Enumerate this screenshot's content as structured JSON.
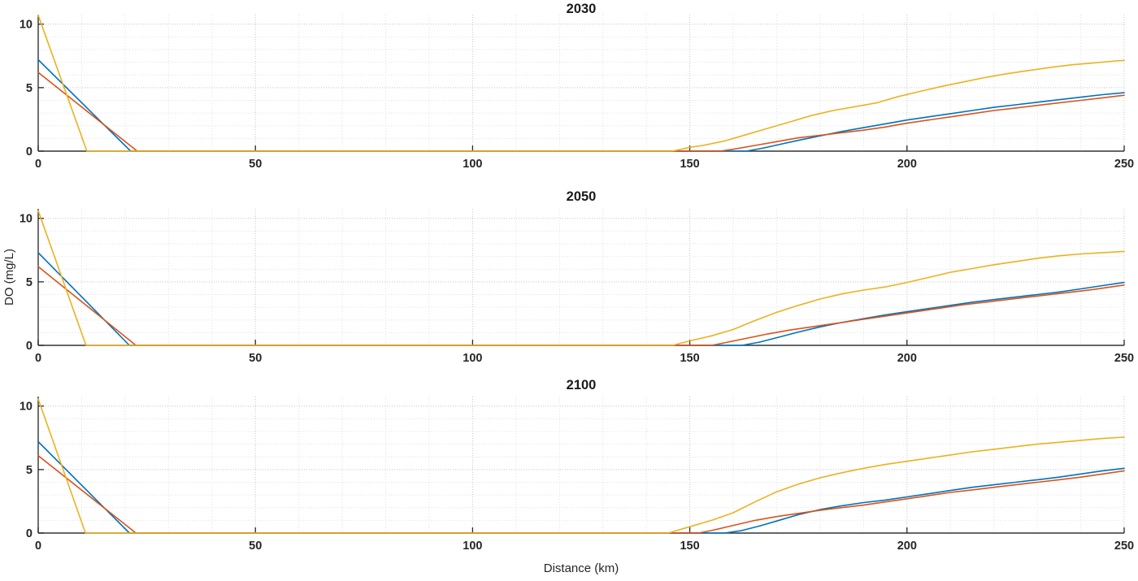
{
  "figure": {
    "xlabel": "Distance (km)",
    "ylabel": "DO (mg/L)",
    "axis_color": "#333333",
    "tick_color": "#262626",
    "grid_major_color": "#c4c4c4",
    "grid_minor_color": "#dedede",
    "x_ticks": [
      0,
      50,
      100,
      150,
      200,
      250
    ],
    "y_ticks": [
      0,
      5,
      10
    ]
  },
  "chart_data": [
    {
      "type": "line",
      "title": "2030",
      "xlabel": "Distance (km)",
      "ylabel": "DO (mg/L)",
      "xlim": [
        0,
        250
      ],
      "ylim": [
        0,
        10.75
      ],
      "x_ticks": [
        0,
        50,
        100,
        150,
        200,
        250
      ],
      "y_ticks": [
        0,
        5,
        10
      ],
      "grid": true,
      "minor_grid": true,
      "legend": null,
      "series": [
        {
          "name": "blue-line",
          "color": "#0072BD",
          "points": [
            [
              0,
              7.2
            ],
            [
              21.3,
              0
            ],
            [
              163,
              0
            ],
            [
              167,
              0.25
            ],
            [
              171,
              0.55
            ],
            [
              175,
              0.85
            ],
            [
              180,
              1.2
            ],
            [
              185,
              1.55
            ],
            [
              190,
              1.85
            ],
            [
              195,
              2.15
            ],
            [
              200,
              2.45
            ],
            [
              205,
              2.7
            ],
            [
              210,
              2.95
            ],
            [
              215,
              3.2
            ],
            [
              220,
              3.45
            ],
            [
              225,
              3.65
            ],
            [
              230,
              3.85
            ],
            [
              235,
              4.05
            ],
            [
              240,
              4.25
            ],
            [
              245,
              4.45
            ],
            [
              250,
              4.6
            ]
          ]
        },
        {
          "name": "red-line",
          "color": "#D95319",
          "points": [
            [
              0,
              6.2
            ],
            [
              22.8,
              0
            ],
            [
              157,
              0
            ],
            [
              160,
              0.15
            ],
            [
              165,
              0.45
            ],
            [
              170,
              0.75
            ],
            [
              175,
              1.05
            ],
            [
              180,
              1.25
            ],
            [
              185,
              1.45
            ],
            [
              190,
              1.65
            ],
            [
              195,
              1.9
            ],
            [
              200,
              2.2
            ],
            [
              205,
              2.45
            ],
            [
              210,
              2.7
            ],
            [
              215,
              2.95
            ],
            [
              220,
              3.2
            ],
            [
              225,
              3.4
            ],
            [
              230,
              3.6
            ],
            [
              235,
              3.8
            ],
            [
              240,
              4.0
            ],
            [
              245,
              4.2
            ],
            [
              250,
              4.4
            ]
          ]
        },
        {
          "name": "yellow-line",
          "color": "#EDB120",
          "points": [
            [
              0,
              10.7
            ],
            [
              11.2,
              0
            ],
            [
              146,
              0
            ],
            [
              150,
              0.3
            ],
            [
              153,
              0.45
            ],
            [
              158,
              0.8
            ],
            [
              163,
              1.3
            ],
            [
              168,
              1.8
            ],
            [
              173,
              2.3
            ],
            [
              178,
              2.8
            ],
            [
              183,
              3.2
            ],
            [
              188,
              3.5
            ],
            [
              193,
              3.8
            ],
            [
              198,
              4.3
            ],
            [
              203,
              4.7
            ],
            [
              208,
              5.1
            ],
            [
              213,
              5.45
            ],
            [
              218,
              5.8
            ],
            [
              223,
              6.1
            ],
            [
              228,
              6.35
            ],
            [
              233,
              6.6
            ],
            [
              238,
              6.8
            ],
            [
              243,
              6.95
            ],
            [
              248,
              7.1
            ],
            [
              250,
              7.15
            ]
          ]
        }
      ]
    },
    {
      "type": "line",
      "title": "2050",
      "xlabel": "Distance (km)",
      "ylabel": "DO (mg/L)",
      "xlim": [
        0,
        250
      ],
      "ylim": [
        0,
        10.75
      ],
      "x_ticks": [
        0,
        50,
        100,
        150,
        200,
        250
      ],
      "y_ticks": [
        0,
        5,
        10
      ],
      "grid": true,
      "minor_grid": true,
      "legend": null,
      "series": [
        {
          "name": "blue-line",
          "color": "#0072BD",
          "points": [
            [
              0,
              7.3
            ],
            [
              21,
              0
            ],
            [
              162,
              0
            ],
            [
              166,
              0.25
            ],
            [
              170,
              0.6
            ],
            [
              175,
              1.05
            ],
            [
              180,
              1.45
            ],
            [
              185,
              1.8
            ],
            [
              190,
              2.1
            ],
            [
              195,
              2.4
            ],
            [
              200,
              2.65
            ],
            [
              205,
              2.9
            ],
            [
              210,
              3.15
            ],
            [
              215,
              3.4
            ],
            [
              220,
              3.6
            ],
            [
              225,
              3.8
            ],
            [
              230,
              4.0
            ],
            [
              235,
              4.2
            ],
            [
              240,
              4.45
            ],
            [
              245,
              4.7
            ],
            [
              250,
              4.95
            ]
          ]
        },
        {
          "name": "red-line",
          "color": "#D95319",
          "points": [
            [
              0,
              6.2
            ],
            [
              22.5,
              0
            ],
            [
              155,
              0
            ],
            [
              158,
              0.2
            ],
            [
              163,
              0.55
            ],
            [
              168,
              0.9
            ],
            [
              173,
              1.2
            ],
            [
              178,
              1.45
            ],
            [
              183,
              1.7
            ],
            [
              188,
              1.95
            ],
            [
              193,
              2.2
            ],
            [
              198,
              2.45
            ],
            [
              203,
              2.7
            ],
            [
              208,
              2.95
            ],
            [
              213,
              3.2
            ],
            [
              218,
              3.4
            ],
            [
              223,
              3.6
            ],
            [
              228,
              3.8
            ],
            [
              233,
              4.0
            ],
            [
              238,
              4.2
            ],
            [
              243,
              4.4
            ],
            [
              248,
              4.65
            ],
            [
              250,
              4.75
            ]
          ]
        },
        {
          "name": "yellow-line",
          "color": "#EDB120",
          "points": [
            [
              0,
              10.6
            ],
            [
              11,
              0
            ],
            [
              146,
              0
            ],
            [
              150,
              0.35
            ],
            [
              155,
              0.75
            ],
            [
              160,
              1.25
            ],
            [
              165,
              1.95
            ],
            [
              170,
              2.6
            ],
            [
              175,
              3.15
            ],
            [
              180,
              3.65
            ],
            [
              185,
              4.05
            ],
            [
              190,
              4.35
            ],
            [
              195,
              4.6
            ],
            [
              200,
              4.95
            ],
            [
              205,
              5.35
            ],
            [
              210,
              5.75
            ],
            [
              215,
              6.05
            ],
            [
              220,
              6.35
            ],
            [
              225,
              6.6
            ],
            [
              230,
              6.85
            ],
            [
              235,
              7.05
            ],
            [
              240,
              7.2
            ],
            [
              245,
              7.3
            ],
            [
              250,
              7.4
            ]
          ]
        }
      ]
    },
    {
      "type": "line",
      "title": "2100",
      "xlabel": "Distance (km)",
      "ylabel": "DO (mg/L)",
      "xlim": [
        0,
        250
      ],
      "ylim": [
        0,
        10.75
      ],
      "x_ticks": [
        0,
        50,
        100,
        150,
        200,
        250
      ],
      "y_ticks": [
        0,
        5,
        10
      ],
      "grid": true,
      "minor_grid": true,
      "legend": null,
      "series": [
        {
          "name": "blue-line",
          "color": "#0072BD",
          "points": [
            [
              0,
              7.2
            ],
            [
              21,
              0
            ],
            [
              158,
              0
            ],
            [
              162,
              0.2
            ],
            [
              166,
              0.55
            ],
            [
              170,
              0.95
            ],
            [
              175,
              1.45
            ],
            [
              180,
              1.85
            ],
            [
              185,
              2.15
            ],
            [
              190,
              2.4
            ],
            [
              195,
              2.6
            ],
            [
              200,
              2.85
            ],
            [
              205,
              3.1
            ],
            [
              210,
              3.35
            ],
            [
              215,
              3.6
            ],
            [
              220,
              3.8
            ],
            [
              225,
              4.0
            ],
            [
              230,
              4.2
            ],
            [
              235,
              4.4
            ],
            [
              240,
              4.65
            ],
            [
              245,
              4.9
            ],
            [
              250,
              5.1
            ]
          ]
        },
        {
          "name": "red-line",
          "color": "#D95319",
          "points": [
            [
              0,
              6.1
            ],
            [
              22.5,
              0
            ],
            [
              152,
              0
            ],
            [
              155,
              0.2
            ],
            [
              160,
              0.6
            ],
            [
              165,
              1.0
            ],
            [
              170,
              1.3
            ],
            [
              175,
              1.55
            ],
            [
              180,
              1.8
            ],
            [
              185,
              2.0
            ],
            [
              190,
              2.2
            ],
            [
              195,
              2.45
            ],
            [
              200,
              2.7
            ],
            [
              205,
              2.95
            ],
            [
              210,
              3.2
            ],
            [
              215,
              3.4
            ],
            [
              220,
              3.6
            ],
            [
              225,
              3.8
            ],
            [
              230,
              4.0
            ],
            [
              235,
              4.2
            ],
            [
              240,
              4.4
            ],
            [
              245,
              4.65
            ],
            [
              250,
              4.9
            ]
          ]
        },
        {
          "name": "yellow-line",
          "color": "#EDB120",
          "points": [
            [
              0,
              10.55
            ],
            [
              10.9,
              0
            ],
            [
              145,
              0
            ],
            [
              150,
              0.5
            ],
            [
              155,
              1.0
            ],
            [
              160,
              1.6
            ],
            [
              165,
              2.45
            ],
            [
              170,
              3.25
            ],
            [
              175,
              3.85
            ],
            [
              180,
              4.35
            ],
            [
              185,
              4.75
            ],
            [
              190,
              5.1
            ],
            [
              195,
              5.4
            ],
            [
              200,
              5.65
            ],
            [
              205,
              5.9
            ],
            [
              210,
              6.15
            ],
            [
              215,
              6.4
            ],
            [
              220,
              6.6
            ],
            [
              225,
              6.8
            ],
            [
              230,
              7.0
            ],
            [
              235,
              7.15
            ],
            [
              240,
              7.3
            ],
            [
              245,
              7.45
            ],
            [
              250,
              7.55
            ]
          ]
        }
      ]
    }
  ]
}
